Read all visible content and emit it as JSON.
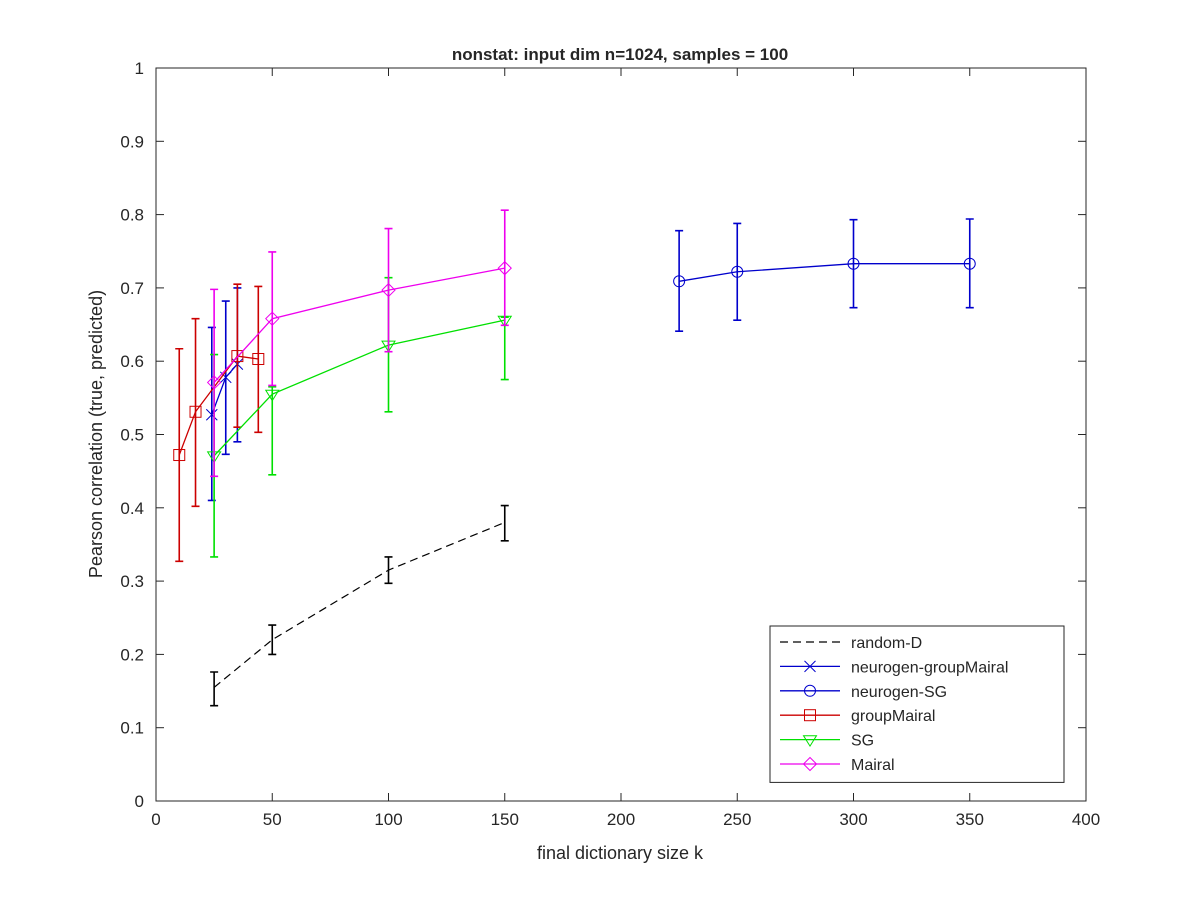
{
  "chart_data": {
    "type": "line",
    "title": "nonstat: input dim n=1024, samples = 100",
    "xlabel": "final dictionary size k",
    "ylabel": "Pearson correlation (true, predicted)",
    "xlim": [
      0,
      400
    ],
    "ylim": [
      0,
      1
    ],
    "xticks": [
      0,
      50,
      100,
      150,
      200,
      250,
      300,
      350,
      400
    ],
    "yticks": [
      0,
      0.1,
      0.2,
      0.3,
      0.4,
      0.5,
      0.6,
      0.7,
      0.8,
      0.9,
      1
    ],
    "xtick_labels": [
      "0",
      "50",
      "100",
      "150",
      "200",
      "250",
      "300",
      "350",
      "400"
    ],
    "ytick_labels": [
      "0",
      "0.1",
      "0.2",
      "0.3",
      "0.4",
      "0.5",
      "0.6",
      "0.7",
      "0.8",
      "0.9",
      "1"
    ],
    "grid": false,
    "legend_position": "bottom-right",
    "series": [
      {
        "name": "random-D",
        "color": "#000000",
        "line_style": "dashed",
        "marker": "none",
        "x": [
          25,
          50,
          100,
          150
        ],
        "y": [
          0.155,
          0.22,
          0.315,
          0.38
        ],
        "err_low": [
          0.13,
          0.2,
          0.297,
          0.355
        ],
        "err_high": [
          0.176,
          0.24,
          0.333,
          0.403
        ]
      },
      {
        "name": "neurogen-groupMairal",
        "color": "#0000cc",
        "line_style": "solid",
        "marker": "x",
        "x": [
          24,
          30,
          35
        ],
        "y": [
          0.527,
          0.578,
          0.596
        ],
        "err_low": [
          0.41,
          0.473,
          0.49
        ],
        "err_high": [
          0.646,
          0.682,
          0.7
        ]
      },
      {
        "name": "neurogen-SG",
        "color": "#0000cc",
        "line_style": "solid",
        "marker": "circle",
        "x": [
          225,
          250,
          300,
          350
        ],
        "y": [
          0.709,
          0.722,
          0.733,
          0.733
        ],
        "err_low": [
          0.641,
          0.656,
          0.673,
          0.673
        ],
        "err_high": [
          0.778,
          0.788,
          0.793,
          0.794
        ]
      },
      {
        "name": "groupMairal",
        "color": "#cc0000",
        "line_style": "solid",
        "marker": "square",
        "x": [
          10,
          17,
          35,
          44
        ],
        "y": [
          0.472,
          0.531,
          0.607,
          0.603
        ],
        "err_low": [
          0.327,
          0.402,
          0.51,
          0.503
        ],
        "err_high": [
          0.617,
          0.658,
          0.705,
          0.702
        ]
      },
      {
        "name": "SG",
        "color": "#00e000",
        "line_style": "solid",
        "marker": "triangle-down",
        "x": [
          25,
          50,
          100,
          150
        ],
        "y": [
          0.471,
          0.555,
          0.622,
          0.656
        ],
        "err_low": [
          0.333,
          0.445,
          0.531,
          0.575
        ],
        "err_high": [
          0.609,
          0.565,
          0.714,
          0.66
        ]
      },
      {
        "name": "Mairal",
        "color": "#ee00ee",
        "line_style": "solid",
        "marker": "diamond",
        "x": [
          25,
          50,
          100,
          150
        ],
        "y": [
          0.571,
          0.658,
          0.697,
          0.727
        ],
        "err_low": [
          0.443,
          0.567,
          0.613,
          0.649
        ],
        "err_high": [
          0.698,
          0.749,
          0.781,
          0.806
        ]
      }
    ]
  }
}
